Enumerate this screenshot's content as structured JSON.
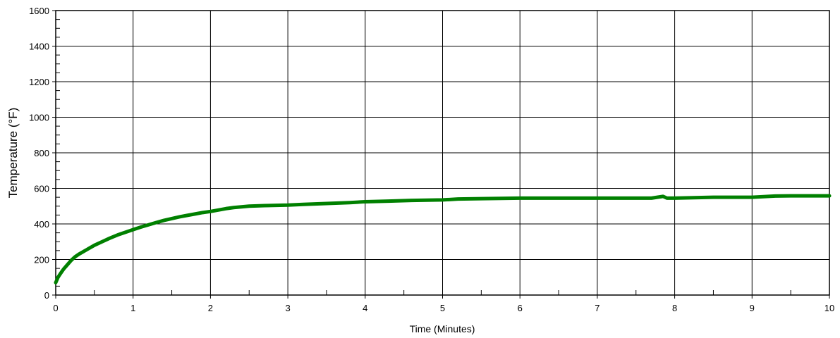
{
  "chart_data": {
    "type": "line",
    "title": "",
    "xlabel": "Time (Minutes)",
    "ylabel": "Temperature (°F)",
    "xlim": [
      0,
      10
    ],
    "ylim": [
      0,
      1600
    ],
    "x_ticks": [
      0,
      1,
      2,
      3,
      4,
      5,
      6,
      7,
      8,
      9,
      10
    ],
    "y_ticks": [
      0,
      200,
      400,
      600,
      800,
      1000,
      1200,
      1400,
      1600
    ],
    "grid": true,
    "legend": "none",
    "colors": {
      "series": "#008000",
      "grid": "#000000",
      "background": "#ffffff"
    },
    "series": [
      {
        "x": [
          0.0,
          0.03,
          0.06,
          0.1,
          0.15,
          0.2,
          0.25,
          0.3,
          0.4,
          0.5,
          0.6,
          0.7,
          0.8,
          0.9,
          1.0,
          1.1,
          1.2,
          1.3,
          1.4,
          1.5,
          1.6,
          1.7,
          1.8,
          1.9,
          2.0,
          2.1,
          2.2,
          2.3,
          2.4,
          2.5,
          2.7,
          3.0,
          3.2,
          3.5,
          3.8,
          4.0,
          4.3,
          4.6,
          5.0,
          5.2,
          5.5,
          6.0,
          6.5,
          7.0,
          7.5,
          7.7,
          7.85,
          7.9,
          8.0,
          8.5,
          9.0,
          9.3,
          9.5,
          10.0
        ],
        "y": [
          70,
          100,
          120,
          145,
          170,
          195,
          215,
          230,
          255,
          280,
          300,
          320,
          338,
          353,
          368,
          382,
          395,
          408,
          420,
          430,
          440,
          448,
          456,
          464,
          470,
          478,
          486,
          492,
          496,
          500,
          503,
          506,
          510,
          515,
          520,
          525,
          528,
          532,
          535,
          540,
          542,
          545,
          545,
          545,
          545,
          545,
          555,
          545,
          545,
          550,
          550,
          557,
          558,
          558
        ]
      }
    ]
  }
}
